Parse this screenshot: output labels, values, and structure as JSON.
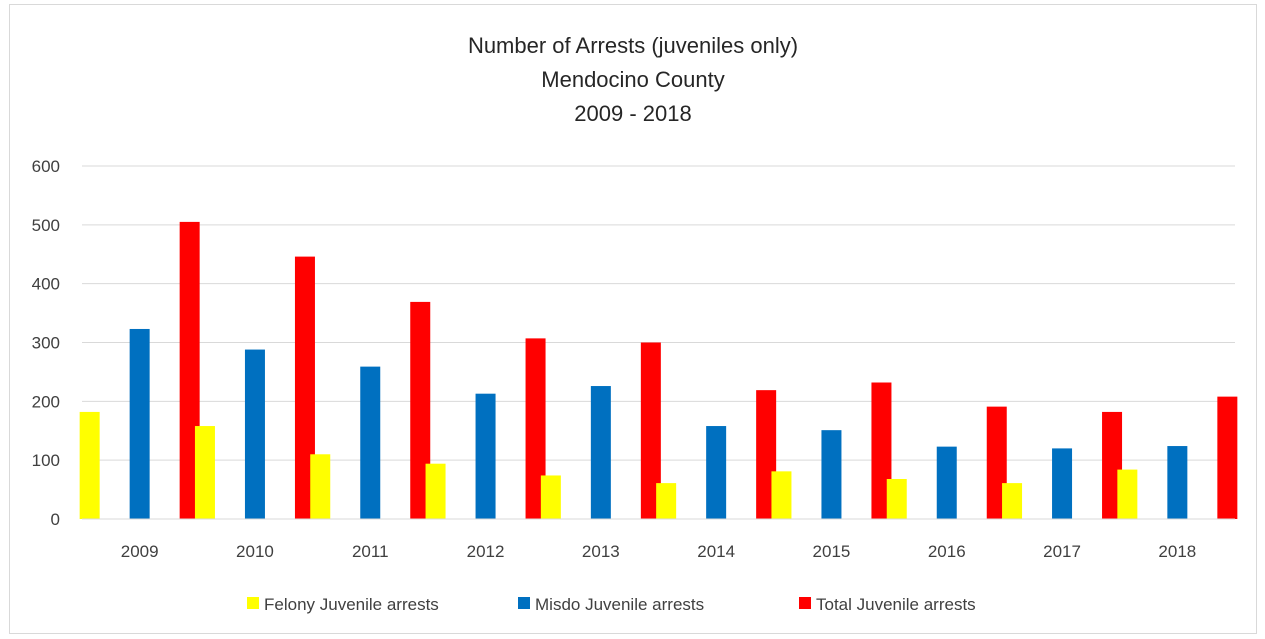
{
  "chart_data": {
    "type": "bar",
    "title_lines": [
      "Number of Arrests (juveniles only)",
      "Mendocino County",
      "2009 - 2018"
    ],
    "xlabel": "",
    "ylabel": "",
    "categories": [
      "2009",
      "2010",
      "2011",
      "2012",
      "2013",
      "2014",
      "2015",
      "2016",
      "2017",
      "2018"
    ],
    "ylim": [
      0,
      600
    ],
    "yticks": [
      "0",
      "100",
      "200",
      "300",
      "400",
      "500",
      "600"
    ],
    "grid": true,
    "legend_position": "bottom",
    "series": [
      {
        "name": "Felony Juvenile arrests",
        "color": "#ffff00",
        "values": [
          182,
          158,
          110,
          94,
          74,
          61,
          81,
          68,
          61,
          84
        ]
      },
      {
        "name": "Misdo Juvenile arrests",
        "color": "#0070c0",
        "values": [
          323,
          288,
          259,
          213,
          226,
          158,
          151,
          123,
          120,
          124
        ]
      },
      {
        "name": "Total Juvenile arrests",
        "color": "#ff0000",
        "values": [
          505,
          446,
          369,
          307,
          300,
          219,
          232,
          191,
          182,
          208
        ]
      }
    ]
  }
}
